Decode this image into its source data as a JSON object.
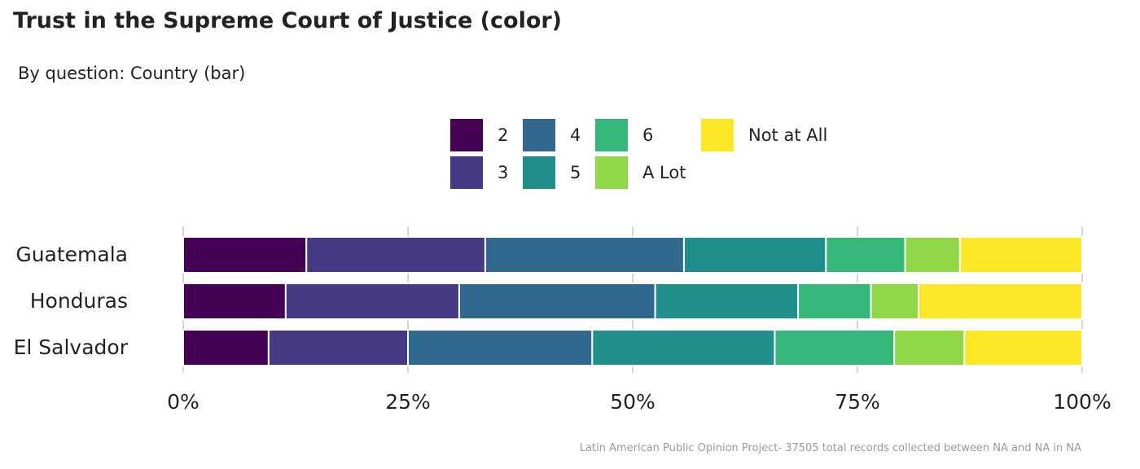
{
  "title": "Trust in the Supreme Court of Justice (color)",
  "subtitle": "By question: Country (bar)",
  "caption": "Latin American Public Opinion Project- 37505 total records collected between NA and NA in  NA",
  "legend": [
    {
      "label": "2",
      "color": "#440154"
    },
    {
      "label": "3",
      "color": "#443A83"
    },
    {
      "label": "4",
      "color": "#31688E"
    },
    {
      "label": "5",
      "color": "#21908C"
    },
    {
      "label": "6",
      "color": "#35B779"
    },
    {
      "label": "A Lot",
      "color": "#8FD744"
    },
    {
      "label": "Not at All",
      "color": "#FDE725"
    }
  ],
  "chart_data": {
    "type": "bar",
    "orientation": "horizontal",
    "stacked": true,
    "normalized": true,
    "categories": [
      "Guatemala",
      "Honduras",
      "El Salvador"
    ],
    "series": [
      {
        "name": "2",
        "color": "#440154",
        "values": [
          13.7,
          11.4,
          9.5
        ]
      },
      {
        "name": "3",
        "color": "#443A83",
        "values": [
          19.9,
          19.3,
          15.5
        ]
      },
      {
        "name": "4",
        "color": "#31688E",
        "values": [
          22.1,
          21.8,
          20.5
        ]
      },
      {
        "name": "5",
        "color": "#21908C",
        "values": [
          15.8,
          15.9,
          20.3
        ]
      },
      {
        "name": "6",
        "color": "#35B779",
        "values": [
          8.8,
          8.1,
          13.3
        ]
      },
      {
        "name": "A Lot",
        "color": "#8FD744",
        "values": [
          6.1,
          5.3,
          7.8
        ]
      },
      {
        "name": "Not at All",
        "color": "#FDE725",
        "values": [
          13.6,
          18.2,
          13.1
        ]
      }
    ],
    "x_ticks": [
      "0%",
      "25%",
      "50%",
      "75%",
      "100%"
    ],
    "xlim": [
      0,
      100
    ],
    "grid": true,
    "legend_position": "top"
  }
}
